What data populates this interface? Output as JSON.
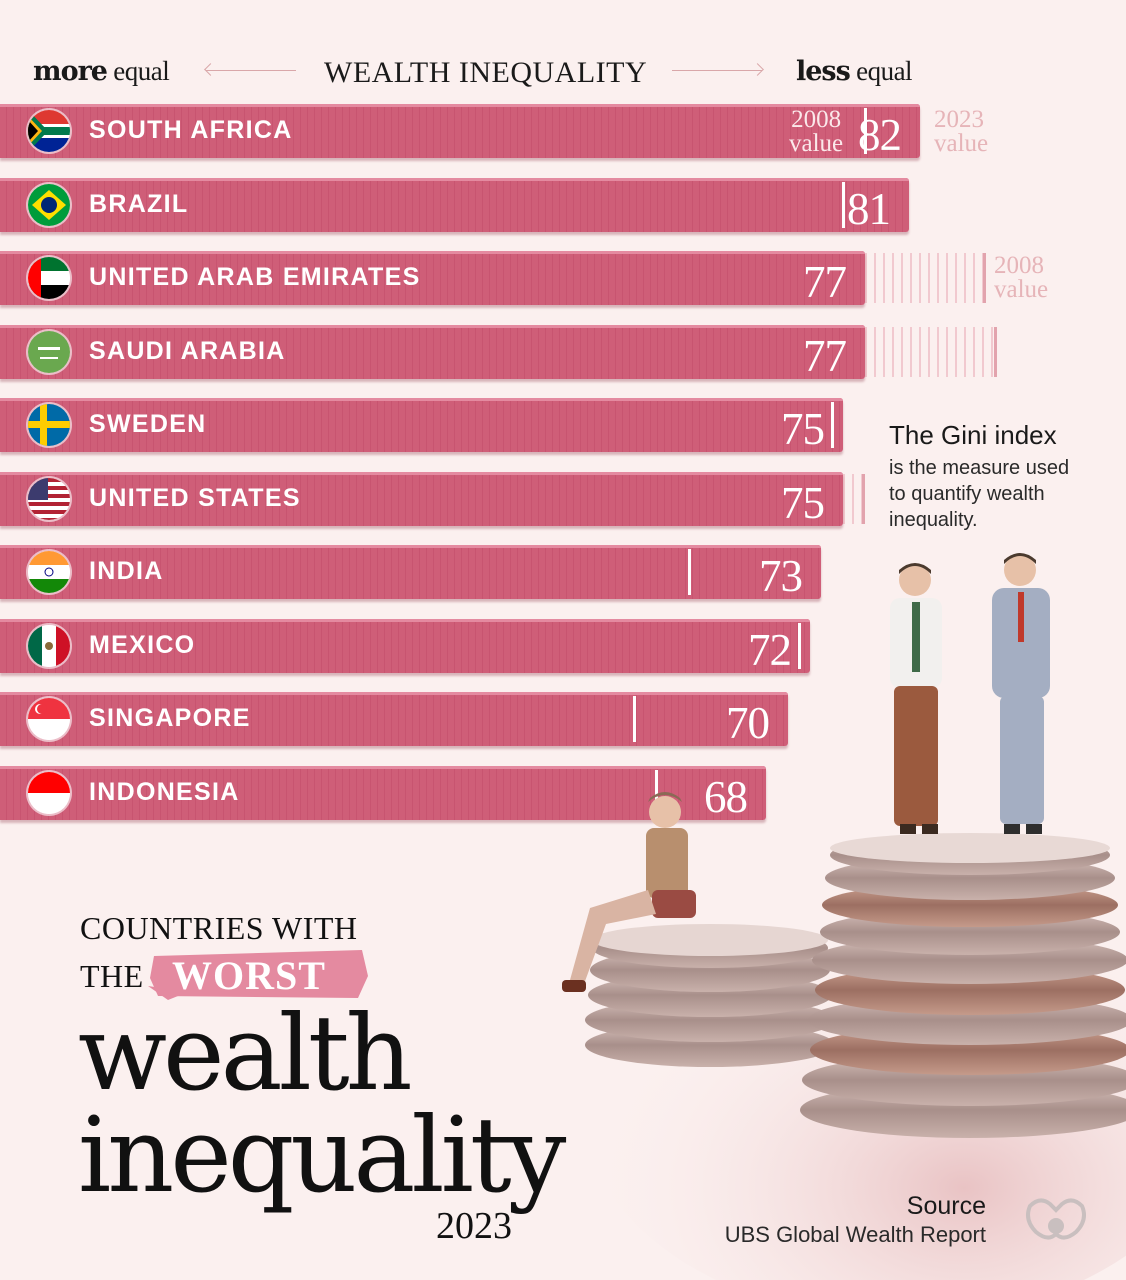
{
  "header": {
    "left_bold": "more",
    "left_rest": " equal",
    "title": "WEALTH INEQUALITY",
    "right_bold": "less",
    "right_rest": " equal"
  },
  "labels": {
    "value_2008": [
      "2008",
      "value"
    ],
    "value_2023": [
      "2023",
      "value"
    ]
  },
  "chart_data": {
    "type": "bar",
    "orientation": "horizontal",
    "title": "COUNTRIES WITH THE WORST wealth inequality 2023",
    "xlabel": "WEALTH INEQUALITY",
    "categories": [
      "SOUTH AFRICA",
      "BRAZIL",
      "UNITED ARAB EMIRATES",
      "SAUDI ARABIA",
      "SWEDEN",
      "UNITED STATES",
      "INDIA",
      "MEXICO",
      "SINGAPORE",
      "INDONESIA"
    ],
    "series": [
      {
        "name": "2023 value",
        "values": [
          82,
          81,
          77,
          77,
          75,
          75,
          73,
          72,
          70,
          68
        ]
      },
      {
        "name": "2008 value",
        "values": [
          77,
          75,
          88,
          89,
          74,
          77,
          61,
          71,
          56,
          58
        ]
      }
    ]
  },
  "note": {
    "title": "The Gini index",
    "text": "is the measure used to quantify wealth inequality."
  },
  "title": {
    "line1": "COUNTRIES WITH",
    "line2_prefix": "THE",
    "highlight": "WORST",
    "big1": "wealth",
    "big2": "inequality",
    "year": "2023"
  },
  "source": {
    "heading": "Source",
    "value": "UBS Global Wealth Report"
  },
  "colors": {
    "bar": "#cf5e78",
    "ghost": "#f1c9cf",
    "background": "#fbf0ef"
  }
}
